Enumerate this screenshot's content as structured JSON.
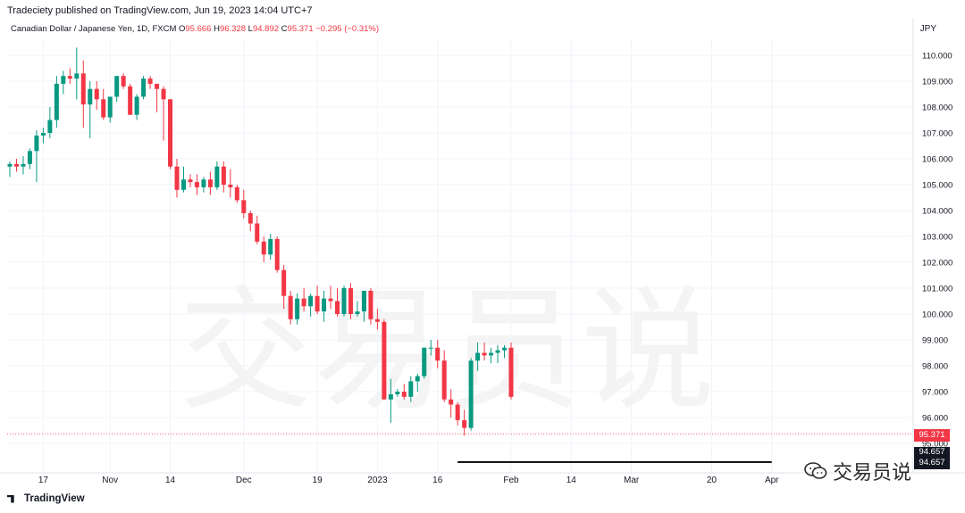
{
  "header": {
    "published": "Tradeciety published on TradingView.com, Jun 19, 2023 14:04 UTC+7",
    "symbol": "Canadian Dollar / Japanese Yen, 1D, FXCM",
    "o_label": "O",
    "o_value": "95.666",
    "h_label": "H",
    "h_value": "96.328",
    "l_label": "L",
    "l_value": "94.892",
    "c_label": "C",
    "c_value": "95.371",
    "change": "−0.295 (−0.31%)",
    "currency": "JPY"
  },
  "footer": {
    "brand": "TradingView"
  },
  "watermark": {
    "text": "交易员说"
  },
  "badges": {
    "current_price": "95.371",
    "line_price": "94.657",
    "line_price_2": "94.657"
  },
  "colors": {
    "up": "#089981",
    "down": "#f23645",
    "grid": "#f0f3fa",
    "axis_text": "#131722",
    "line": "#000000"
  },
  "chart_data": {
    "type": "candlestick",
    "ylim": [
      94.6,
      110.6
    ],
    "y_ticks": [
      110.0,
      109.0,
      108.0,
      107.0,
      106.0,
      105.0,
      104.0,
      103.0,
      102.0,
      101.0,
      100.0,
      99.0,
      98.0,
      97.0,
      96.0,
      95.0
    ],
    "y_tick_labels": [
      "110.000",
      "109.000",
      "108.000",
      "107.000",
      "106.000",
      "105.000",
      "104.000",
      "103.000",
      "102.000",
      "101.000",
      "100.000",
      "99.000",
      "98.000",
      "97.000",
      "96.000",
      "95.000"
    ],
    "x_labels": [
      {
        "label": "17",
        "bar": 5
      },
      {
        "label": "Nov",
        "bar": 15
      },
      {
        "label": "14",
        "bar": 24
      },
      {
        "label": "Dec",
        "bar": 35
      },
      {
        "label": "19",
        "bar": 46
      },
      {
        "label": "2023",
        "bar": 55
      },
      {
        "label": "16",
        "bar": 64
      },
      {
        "label": "Feb",
        "bar": 75
      },
      {
        "label": "14",
        "bar": 84
      },
      {
        "label": "Mar",
        "bar": 93
      },
      {
        "label": "20",
        "bar": 105
      },
      {
        "label": "Apr",
        "bar": 114
      }
    ],
    "horizontal_line": {
      "price": 94.657,
      "from_bar": 67,
      "to_bar": 114
    },
    "candles": [
      [
        105.7,
        105.9,
        105.3,
        105.8
      ],
      [
        105.8,
        106.0,
        105.5,
        105.7
      ],
      [
        105.7,
        106.1,
        105.4,
        105.8
      ],
      [
        105.8,
        106.4,
        105.6,
        106.3
      ],
      [
        106.3,
        107.1,
        105.1,
        106.9
      ],
      [
        106.9,
        107.2,
        106.6,
        107.0
      ],
      [
        107.0,
        108.0,
        106.8,
        107.5
      ],
      [
        107.5,
        109.2,
        107.2,
        108.9
      ],
      [
        108.9,
        109.4,
        108.5,
        109.2
      ],
      [
        109.2,
        109.5,
        108.9,
        109.1
      ],
      [
        109.1,
        110.3,
        108.3,
        109.3
      ],
      [
        109.3,
        109.8,
        107.2,
        108.1
      ],
      [
        108.1,
        109.0,
        106.8,
        108.7
      ],
      [
        108.7,
        109.0,
        107.9,
        108.3
      ],
      [
        108.3,
        108.7,
        107.5,
        107.6
      ],
      [
        107.6,
        108.4,
        107.4,
        108.4
      ],
      [
        108.4,
        109.2,
        108.2,
        109.2
      ],
      [
        109.2,
        109.3,
        108.7,
        108.8
      ],
      [
        108.8,
        108.9,
        107.7,
        107.7
      ],
      [
        107.7,
        108.5,
        107.5,
        108.4
      ],
      [
        108.4,
        109.2,
        108.3,
        109.1
      ],
      [
        109.1,
        109.2,
        108.7,
        108.9
      ],
      [
        108.9,
        108.9,
        107.8,
        108.7
      ],
      [
        108.7,
        108.8,
        106.7,
        108.3
      ],
      [
        108.3,
        108.3,
        105.6,
        105.7
      ],
      [
        105.7,
        106.0,
        104.5,
        104.8
      ],
      [
        104.8,
        105.7,
        104.7,
        105.2
      ],
      [
        105.2,
        105.4,
        104.9,
        105.1
      ],
      [
        105.1,
        105.4,
        104.6,
        104.9
      ],
      [
        104.9,
        105.3,
        104.7,
        105.2
      ],
      [
        105.2,
        105.5,
        104.6,
        104.9
      ],
      [
        104.9,
        105.9,
        104.8,
        105.7
      ],
      [
        105.7,
        105.9,
        104.7,
        105.0
      ],
      [
        105.0,
        105.6,
        104.5,
        104.9
      ],
      [
        104.9,
        105.0,
        104.3,
        104.4
      ],
      [
        104.4,
        104.8,
        103.7,
        103.9
      ],
      [
        103.9,
        104.0,
        103.2,
        103.5
      ],
      [
        103.5,
        103.8,
        102.7,
        102.8
      ],
      [
        102.8,
        103.0,
        102.0,
        102.3
      ],
      [
        102.3,
        103.1,
        102.1,
        102.9
      ],
      [
        102.9,
        103.0,
        101.6,
        101.7
      ],
      [
        101.7,
        101.9,
        100.2,
        100.7
      ],
      [
        100.7,
        100.9,
        99.6,
        99.8
      ],
      [
        99.8,
        100.8,
        99.6,
        100.6
      ],
      [
        100.6,
        101.0,
        100.1,
        100.3
      ],
      [
        100.3,
        100.8,
        99.9,
        100.7
      ],
      [
        100.7,
        101.1,
        100.0,
        100.1
      ],
      [
        100.1,
        100.9,
        99.7,
        100.6
      ],
      [
        100.6,
        101.1,
        100.2,
        100.5
      ],
      [
        100.5,
        101.0,
        99.9,
        100.0
      ],
      [
        100.0,
        101.1,
        99.9,
        101.0
      ],
      [
        101.0,
        101.2,
        99.8,
        100.0
      ],
      [
        100.0,
        100.5,
        99.9,
        100.1
      ],
      [
        100.1,
        100.9,
        99.7,
        100.9
      ],
      [
        100.9,
        101.0,
        99.6,
        99.8
      ],
      [
        99.8,
        100.2,
        99.4,
        99.7
      ],
      [
        99.7,
        99.8,
        96.7,
        96.7
      ],
      [
        96.7,
        97.5,
        95.8,
        96.9
      ],
      [
        96.9,
        97.1,
        96.8,
        97.0
      ],
      [
        97.0,
        97.3,
        96.7,
        96.8
      ],
      [
        96.8,
        97.6,
        96.6,
        97.4
      ],
      [
        97.4,
        97.7,
        97.0,
        97.6
      ],
      [
        97.6,
        98.7,
        97.5,
        98.7
      ],
      [
        98.7,
        99.0,
        98.4,
        98.7
      ],
      [
        98.7,
        99.0,
        97.9,
        98.2
      ],
      [
        98.2,
        98.6,
        96.6,
        96.7
      ],
      [
        96.7,
        97.1,
        96.0,
        96.5
      ],
      [
        96.5,
        96.6,
        95.7,
        95.9
      ],
      [
        95.9,
        96.3,
        95.3,
        95.6
      ],
      [
        95.6,
        98.3,
        95.5,
        98.2
      ],
      [
        98.2,
        98.9,
        97.8,
        98.5
      ],
      [
        98.5,
        98.9,
        98.2,
        98.4
      ],
      [
        98.4,
        98.7,
        98.1,
        98.5
      ],
      [
        98.5,
        98.8,
        98.1,
        98.6
      ],
      [
        98.6,
        98.8,
        98.3,
        98.7
      ],
      [
        98.7,
        98.9,
        96.7,
        96.8
      ]
    ]
  }
}
